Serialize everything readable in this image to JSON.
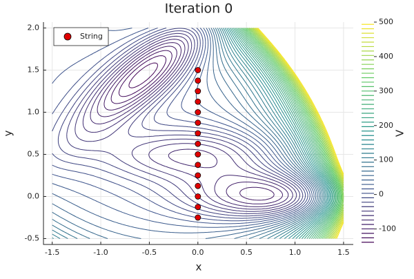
{
  "chart_data": {
    "type": "contour-scatter",
    "title": "Iteration 0",
    "xlabel": "x",
    "ylabel": "y",
    "xlim": [
      -1.59,
      1.6
    ],
    "ylim": [
      -0.57,
      2.07
    ],
    "xticks": [
      -1.5,
      {
        "value": -1,
        "label": "-1.0"
      },
      -0.5,
      {
        "value": 0,
        "label": "0.0"
      },
      0.5,
      {
        "value": 1,
        "label": "1.0"
      },
      1.5
    ],
    "yticks": [
      -0.5,
      {
        "value": 0,
        "label": "0.0"
      },
      0.5,
      {
        "value": 1,
        "label": "1.0"
      },
      1.5,
      {
        "value": 2,
        "label": "2.0"
      }
    ],
    "grid": true,
    "legend": "top-left",
    "series": [
      {
        "name": "String",
        "color": "#e00000",
        "x": [
          0,
          0,
          0,
          0,
          0,
          0,
          0,
          0,
          0,
          0,
          0,
          0,
          0,
          0,
          0
        ],
        "values": [
          1.5,
          1.375,
          1.25,
          1.125,
          1.0,
          0.875,
          0.75,
          0.625,
          0.5,
          0.375,
          0.25,
          0.125,
          0.0,
          -0.125,
          -0.25
        ]
      }
    ],
    "colorbar": {
      "label": "V",
      "lim": [
        -145,
        500
      ],
      "ticks": [
        -100,
        0,
        100,
        200,
        300,
        400,
        500
      ],
      "levels": 50,
      "colormap": "viridis"
    }
  }
}
